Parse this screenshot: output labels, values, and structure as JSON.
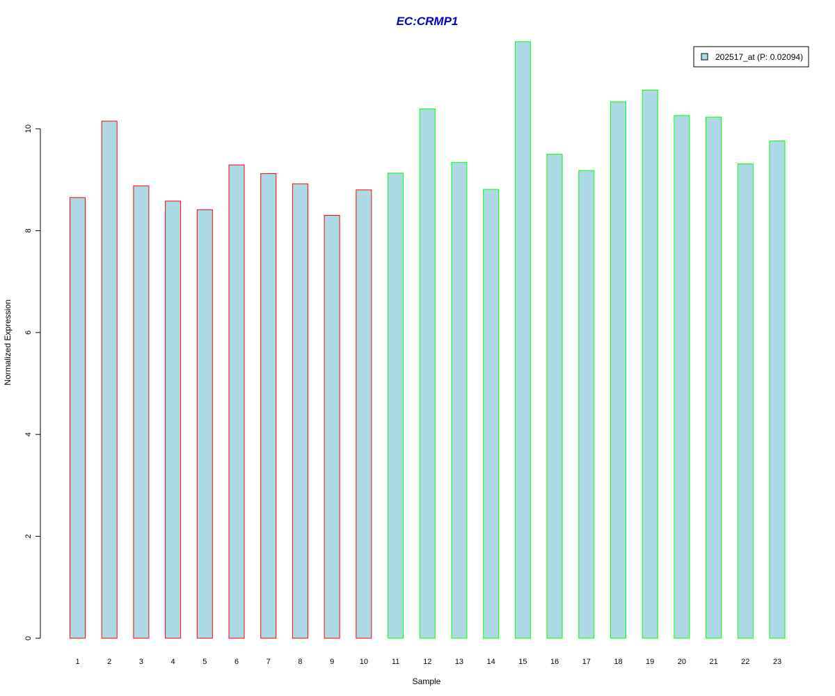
{
  "chart_data": {
    "type": "bar",
    "title": "EC:CRMP1",
    "xlabel": "Sample",
    "ylabel": "Normalized Expression",
    "categories": [
      "1",
      "2",
      "3",
      "4",
      "5",
      "6",
      "7",
      "8",
      "9",
      "10",
      "11",
      "12",
      "13",
      "14",
      "15",
      "16",
      "17",
      "18",
      "19",
      "20",
      "21",
      "22",
      "23"
    ],
    "series": [
      {
        "name": "202517_at (P: 0.02094)",
        "values": [
          8.65,
          10.15,
          8.88,
          8.58,
          8.41,
          9.29,
          9.12,
          8.92,
          8.3,
          8.8,
          9.13,
          10.39,
          9.34,
          8.81,
          11.71,
          9.5,
          9.18,
          10.53,
          10.76,
          10.26,
          10.23,
          9.31,
          9.76
        ]
      }
    ],
    "group_colors": [
      "#ff0000",
      "#ff0000",
      "#ff0000",
      "#ff0000",
      "#ff0000",
      "#ff0000",
      "#ff0000",
      "#ff0000",
      "#ff0000",
      "#ff0000",
      "#00ff00",
      "#00ff00",
      "#00ff00",
      "#00ff00",
      "#00ff00",
      "#00ff00",
      "#00ff00",
      "#00ff00",
      "#00ff00",
      "#00ff00",
      "#00ff00",
      "#00ff00",
      "#00ff00"
    ],
    "bar_fill": "#add8e6",
    "title_color": "#0000cc",
    "yticks": [
      0,
      2,
      4,
      6,
      8,
      10
    ],
    "ylim": [
      0,
      11.71
    ],
    "grid": false,
    "legend_position": "top-right"
  }
}
